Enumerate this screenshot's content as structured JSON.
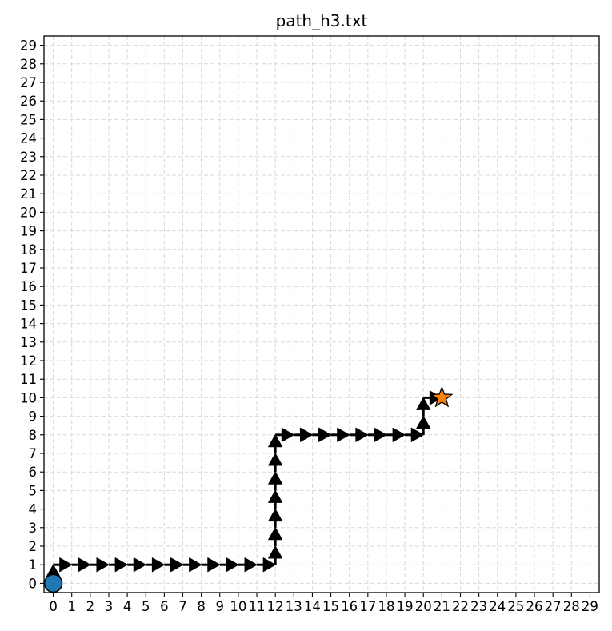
{
  "chart_data": {
    "type": "scatter",
    "title": "path_h3.txt",
    "xlabel": "",
    "ylabel": "",
    "xlim": [
      -0.5,
      29.5
    ],
    "ylim": [
      -0.5,
      29.5
    ],
    "grid": true,
    "x_ticks": [
      "0",
      "1",
      "2",
      "3",
      "4",
      "5",
      "6",
      "7",
      "8",
      "9",
      "10",
      "11",
      "12",
      "13",
      "14",
      "15",
      "16",
      "17",
      "18",
      "19",
      "20",
      "21",
      "22",
      "23",
      "24",
      "25",
      "26",
      "27",
      "28",
      "29"
    ],
    "y_ticks": [
      "0",
      "1",
      "2",
      "3",
      "4",
      "5",
      "6",
      "7",
      "8",
      "9",
      "10",
      "11",
      "12",
      "13",
      "14",
      "15",
      "16",
      "17",
      "18",
      "19",
      "20",
      "21",
      "22",
      "23",
      "24",
      "25",
      "26",
      "27",
      "28",
      "29"
    ],
    "path": [
      [
        0,
        0
      ],
      [
        0,
        1
      ],
      [
        1,
        1
      ],
      [
        2,
        1
      ],
      [
        3,
        1
      ],
      [
        4,
        1
      ],
      [
        5,
        1
      ],
      [
        6,
        1
      ],
      [
        7,
        1
      ],
      [
        8,
        1
      ],
      [
        9,
        1
      ],
      [
        10,
        1
      ],
      [
        11,
        1
      ],
      [
        12,
        1
      ],
      [
        12,
        2
      ],
      [
        12,
        3
      ],
      [
        12,
        4
      ],
      [
        12,
        5
      ],
      [
        12,
        6
      ],
      [
        12,
        7
      ],
      [
        12,
        8
      ],
      [
        13,
        8
      ],
      [
        14,
        8
      ],
      [
        15,
        8
      ],
      [
        16,
        8
      ],
      [
        17,
        8
      ],
      [
        18,
        8
      ],
      [
        19,
        8
      ],
      [
        20,
        8
      ],
      [
        20,
        9
      ],
      [
        20,
        10
      ],
      [
        21,
        10
      ]
    ],
    "start": {
      "x": 0,
      "y": 0,
      "marker": "circle",
      "color": "#1f77b4"
    },
    "goal": {
      "x": 21,
      "y": 10,
      "marker": "star",
      "color": "#ff7f0e"
    },
    "arrow_color": "#000000"
  }
}
